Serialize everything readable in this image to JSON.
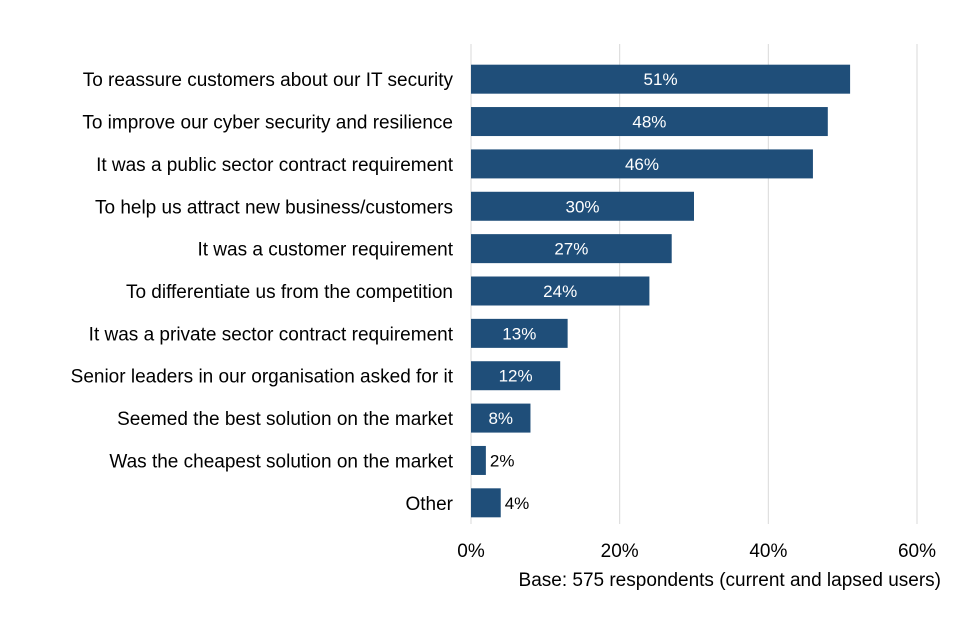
{
  "chart_data": {
    "type": "bar",
    "orientation": "horizontal",
    "categories": [
      "To reassure customers about our IT security",
      "To improve our cyber security and resilience",
      "It was a public sector contract requirement",
      "To help us attract new business/customers",
      "It was a customer requirement",
      "To differentiate us from the competition",
      "It was a private sector contract requirement",
      "Senior leaders in our organisation asked for it",
      "Seemed the best solution on the market",
      "Was the cheapest solution on the market",
      "Other"
    ],
    "values": [
      51,
      48,
      46,
      30,
      27,
      24,
      13,
      12,
      8,
      2,
      4
    ],
    "value_labels": [
      "51%",
      "48%",
      "46%",
      "30%",
      "27%",
      "24%",
      "13%",
      "12%",
      "8%",
      "2%",
      "4%"
    ],
    "xlim": [
      0,
      60
    ],
    "xticks": [
      0,
      20,
      40,
      60
    ],
    "xtick_labels": [
      "0%",
      "20%",
      "40%",
      "60%"
    ],
    "grid": "vertical",
    "note": "Base: 575 respondents (current and lapsed users)",
    "colors": {
      "bar": "#1f4e79",
      "grid": "#d9d9d9",
      "label_inside": "#ffffff",
      "label_outside": "#000000"
    }
  }
}
